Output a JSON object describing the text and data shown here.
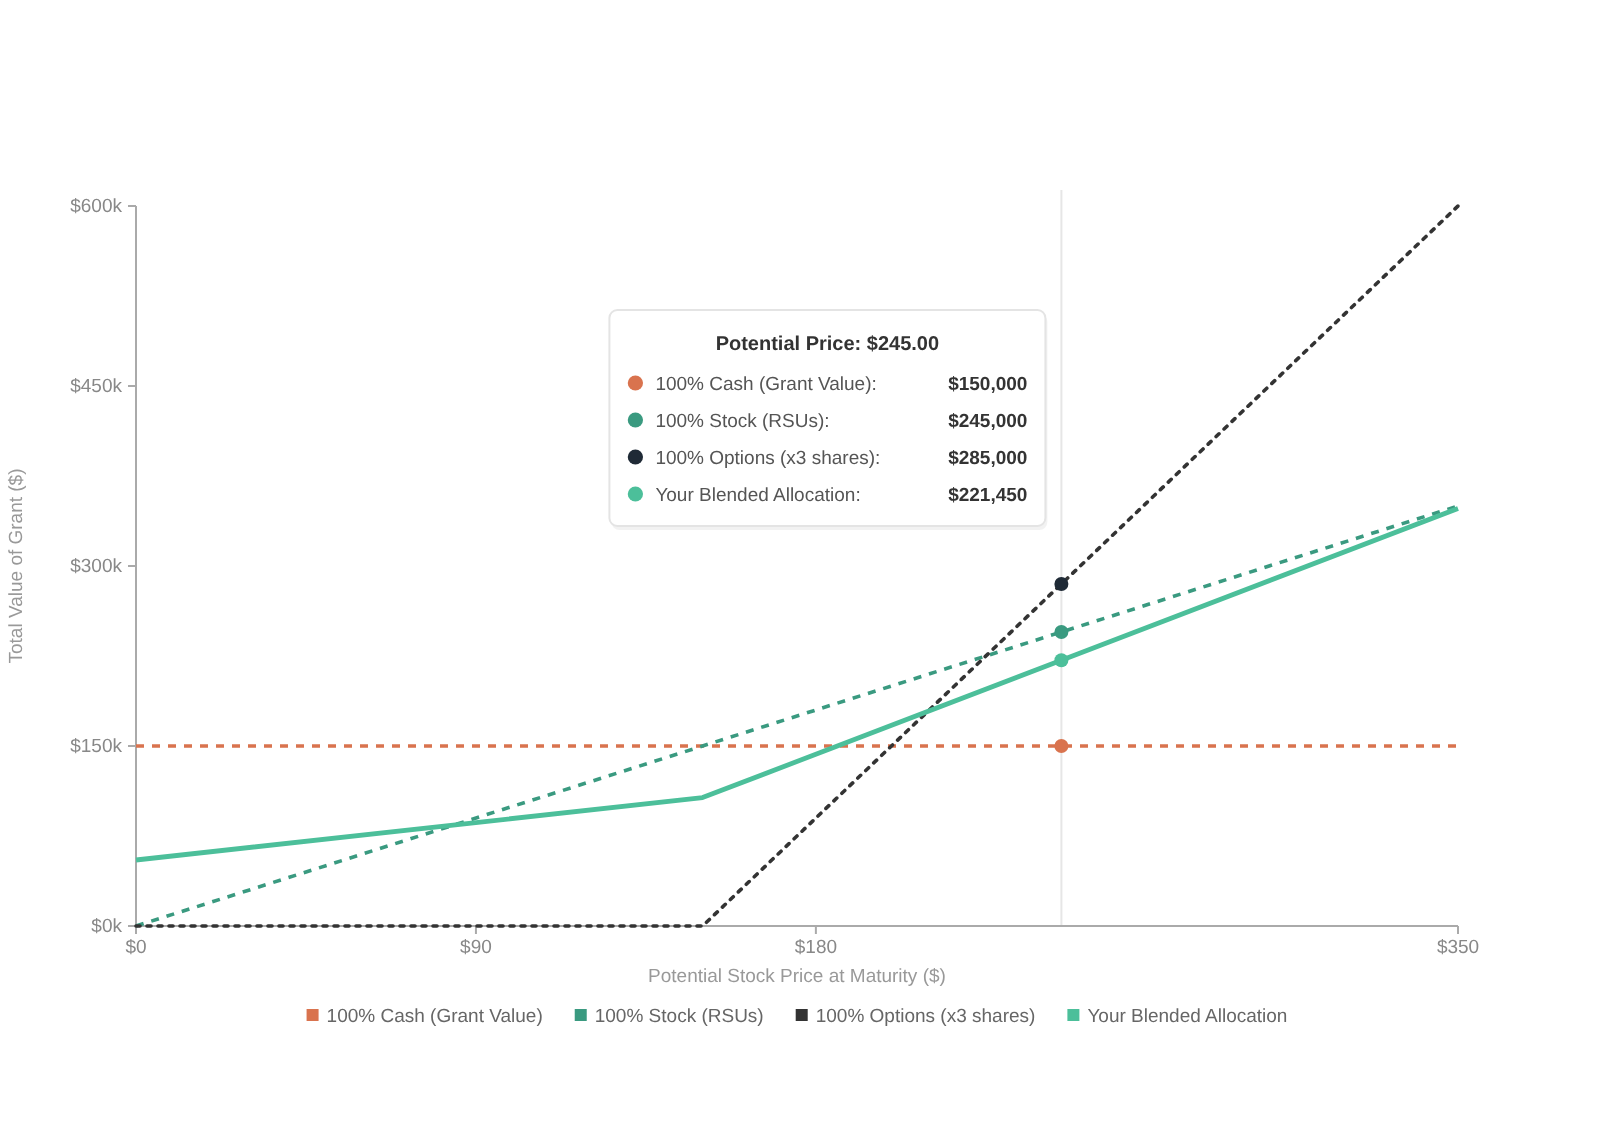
{
  "chart_data": {
    "type": "line",
    "xlabel": "Potential Stock Price at Maturity ($)",
    "ylabel": "Total Value of Grant ($)",
    "xlim": [
      0,
      350
    ],
    "xticks": [
      {
        "value": 0,
        "label": "$0"
      },
      {
        "value": 90,
        "label": "$90"
      },
      {
        "value": 180,
        "label": "$180"
      },
      {
        "value": 350,
        "label": "$350"
      }
    ],
    "ylim": [
      0,
      600000
    ],
    "yticks": [
      {
        "value": 0,
        "label": "$0k"
      },
      {
        "value": 150000,
        "label": "$150k"
      },
      {
        "value": 300000,
        "label": "$300k"
      },
      {
        "value": 450000,
        "label": "$450k"
      },
      {
        "value": 600000,
        "label": "$600k"
      }
    ],
    "legend": "bottom",
    "series": [
      {
        "name": "100% Cash (Grant Value)",
        "color": "#d9734e",
        "line_style": "dashed",
        "marker": "none",
        "x": [
          0,
          245,
          350
        ],
        "values": [
          150000,
          150000,
          150000
        ]
      },
      {
        "name": "100% Stock (RSUs)",
        "color": "#3a9a80",
        "line_style": "dashed",
        "marker": "none",
        "x": [
          0,
          245,
          350
        ],
        "values": [
          0,
          245000,
          350000
        ]
      },
      {
        "name": "100% Options (x3 shares)",
        "color": "#333333",
        "line_style": "dotted",
        "marker": "none",
        "x": [
          0,
          150,
          245,
          350
        ],
        "values": [
          0,
          0,
          285000,
          600000
        ]
      },
      {
        "name": "Your Blended Allocation",
        "color": "#4cbf9a",
        "line_style": "solid",
        "marker": "none",
        "x": [
          0,
          150,
          245,
          350
        ],
        "values": [
          55000,
          107000,
          221450,
          348000
        ]
      },
      {
        "type": "scatter",
        "marker": "circle",
        "x": [
          245,
          245,
          245,
          245
        ],
        "values": [
          150000,
          245000,
          285000,
          221450
        ],
        "colors": [
          "#d9734e",
          "#3a9a80",
          "#1f2a36",
          "#4cbf9a"
        ]
      }
    ],
    "ref_lines": [
      {
        "axis": "x",
        "value": 245,
        "color": "#e6e6e6"
      }
    ],
    "annotations": [
      "Potential Price: $245.00",
      "100% Cash (Grant Value):",
      "$150,000",
      "100% Stock (RSUs):",
      "$245,000",
      "100% Options (x3 shares):",
      "$285,000",
      "Your Blended Allocation:",
      "$221,450"
    ]
  }
}
